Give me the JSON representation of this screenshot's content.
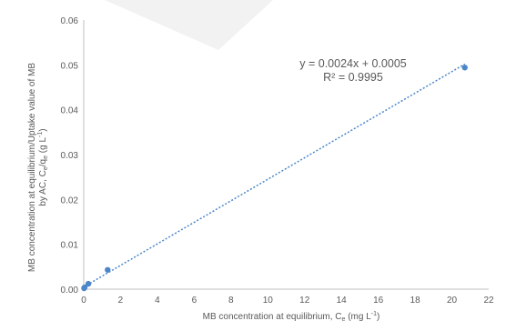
{
  "chart_data": {
    "type": "scatter",
    "xlabel_main": "MB concentration at equilibrium, C",
    "xlabel_sub": "e",
    "xlabel_unit_pre": " (mg L",
    "xlabel_unit_sup": "-1",
    "xlabel_unit_post": ")",
    "ylabel_line1": "MB concentration at equilibrium/Uptake value of MB",
    "ylabel_line2_pre": "by AC, C",
    "ylabel_line2_sub1": "e",
    "ylabel_line2_mid": "/q",
    "ylabel_line2_sub2": "e",
    "ylabel_line2_unit_pre": " (g L",
    "ylabel_line2_unit_sup": "-1",
    "ylabel_line2_unit_post": ")",
    "xlim": [
      0,
      22
    ],
    "ylim": [
      0,
      0.06
    ],
    "x_ticks": [
      "0",
      "2",
      "4",
      "6",
      "8",
      "10",
      "12",
      "14",
      "16",
      "18",
      "20",
      "22"
    ],
    "y_ticks": [
      "0.00",
      "0.01",
      "0.02",
      "0.03",
      "0.04",
      "0.05",
      "0.06"
    ],
    "points": [
      {
        "x": 0.02,
        "y": 0.0002
      },
      {
        "x": 0.05,
        "y": 0.0004
      },
      {
        "x": 0.25,
        "y": 0.0012
      },
      {
        "x": 1.3,
        "y": 0.0043
      },
      {
        "x": 20.7,
        "y": 0.0494
      }
    ],
    "trendline": {
      "slope": 0.0024,
      "intercept": 0.0005,
      "style": "dotted"
    },
    "equation": "y = 0.0024x + 0.0005",
    "r_squared": "R² = 0.9995",
    "colors": {
      "marker": "#4a86c8",
      "trendline": "#4a86c8",
      "axis": "#bfbfbf",
      "text": "#595959"
    }
  }
}
